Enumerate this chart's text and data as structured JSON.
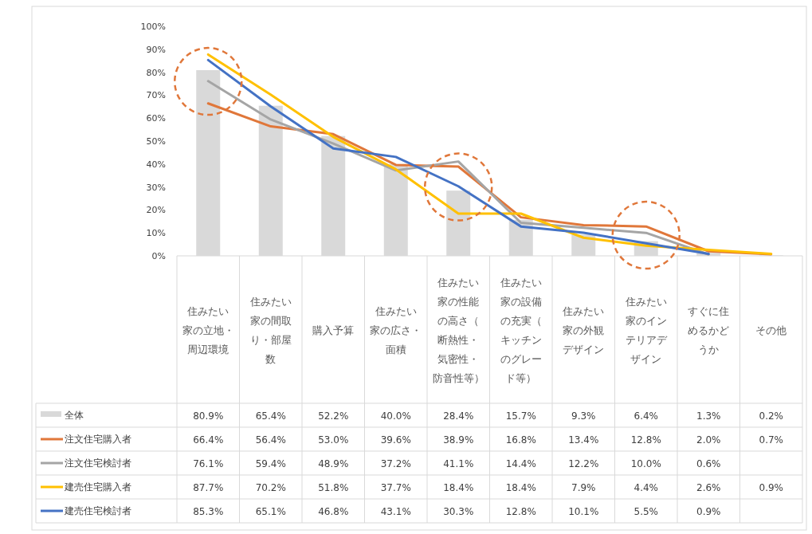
{
  "chart_data": {
    "type": "bar",
    "categories": [
      "住みたい家の立地・周辺環境",
      "住みたい家の間取り・部屋数",
      "購入予算",
      "住みたい家の広さ・面積",
      "住みたい家の性能の高さ（断熱性・気密性・防音性等）",
      "住みたい家の設備の充実（キッチンのグレード等）",
      "住みたい家の外観デザイン",
      "住みたい家のインテリアデザイン",
      "すぐに住めるかどうか",
      "その他"
    ],
    "series": [
      {
        "name": "全体",
        "color": "#d9d9d9",
        "values": [
          80.9,
          65.4,
          52.2,
          40.0,
          28.4,
          15.7,
          9.3,
          6.4,
          1.3,
          0.2
        ],
        "value_labels": [
          "80.9%",
          "65.4%",
          "52.2%",
          "40.0%",
          "28.4%",
          "15.7%",
          "9.3%",
          "6.4%",
          "1.3%",
          "0.2%"
        ]
      },
      {
        "name": "注文住宅購入者",
        "type": "line",
        "color": "#e0773a",
        "values": [
          66.4,
          56.4,
          53.0,
          39.6,
          38.9,
          16.8,
          13.4,
          12.8,
          2.0,
          0.7
        ],
        "value_labels": [
          "66.4%",
          "56.4%",
          "53.0%",
          "39.6%",
          "38.9%",
          "16.8%",
          "13.4%",
          "12.8%",
          "2.0%",
          "0.7%"
        ]
      },
      {
        "name": "注文住宅検討者",
        "type": "line",
        "color": "#a5a5a5",
        "values": [
          76.1,
          59.4,
          48.9,
          37.2,
          41.1,
          14.4,
          12.2,
          10.0,
          0.6,
          null
        ],
        "value_labels": [
          "76.1%",
          "59.4%",
          "48.9%",
          "37.2%",
          "41.1%",
          "14.4%",
          "12.2%",
          "10.0%",
          "0.6%",
          null
        ]
      },
      {
        "name": "建売住宅購入者",
        "type": "line",
        "color": "#ffc000",
        "values": [
          87.7,
          70.2,
          51.8,
          37.7,
          18.4,
          18.4,
          7.9,
          4.4,
          2.6,
          0.9
        ],
        "value_labels": [
          "87.7%",
          "70.2%",
          "51.8%",
          "37.7%",
          "18.4%",
          "18.4%",
          "7.9%",
          "4.4%",
          "2.6%",
          "0.9%"
        ]
      },
      {
        "name": "建売住宅検討者",
        "type": "line",
        "color": "#4472c4",
        "values": [
          85.3,
          65.1,
          46.8,
          43.1,
          30.3,
          12.8,
          10.1,
          5.5,
          0.9,
          null
        ],
        "value_labels": [
          "85.3%",
          "65.1%",
          "46.8%",
          "43.1%",
          "30.3%",
          "12.8%",
          "10.1%",
          "5.5%",
          "0.9%",
          null
        ]
      }
    ],
    "ylim": [
      0,
      100
    ],
    "yticks": [
      {
        "value": 0,
        "label": "0%"
      },
      {
        "value": 10,
        "label": "10%"
      },
      {
        "value": 20,
        "label": "20%"
      },
      {
        "value": 30,
        "label": "30%"
      },
      {
        "value": 40,
        "label": "40%"
      },
      {
        "value": 50,
        "label": "50%"
      },
      {
        "value": 60,
        "label": "60%"
      },
      {
        "value": 70,
        "label": "70%"
      },
      {
        "value": 80,
        "label": "80%"
      },
      {
        "value": 90,
        "label": "90%"
      },
      {
        "value": 100,
        "label": "100%"
      }
    ],
    "legend": "bottom",
    "marker": "none",
    "line_style": "solid"
  }
}
